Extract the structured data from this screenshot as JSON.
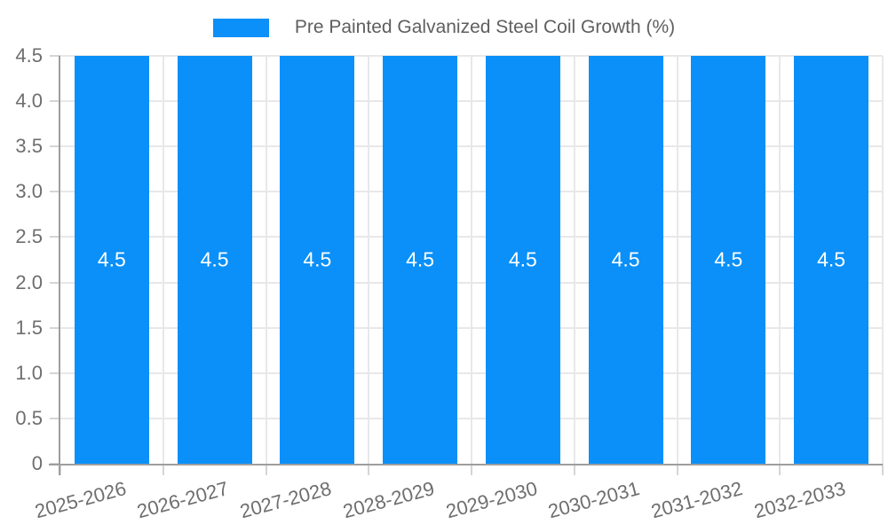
{
  "chart_data": {
    "type": "bar",
    "title": "",
    "legend": {
      "label": "Pre Painted Galvanized Steel Coil Growth (%)",
      "position": "top-center"
    },
    "categories": [
      "2025-2026",
      "2026-2027",
      "2027-2028",
      "2028-2029",
      "2029-2030",
      "2030-2031",
      "2031-2032",
      "2032-2033"
    ],
    "series": [
      {
        "name": "Pre Painted Galvanized Steel Coil Growth (%)",
        "values": [
          4.5,
          4.5,
          4.5,
          4.5,
          4.5,
          4.5,
          4.5,
          4.5
        ]
      }
    ],
    "data_labels": [
      "4.5",
      "4.5",
      "4.5",
      "4.5",
      "4.5",
      "4.5",
      "4.5",
      "4.5"
    ],
    "xlabel": "",
    "ylabel": "",
    "ylim": [
      0,
      4.5
    ],
    "y_ticks_top_to_bottom": [
      "4.5",
      "4.0",
      "3.5",
      "3.0",
      "2.5",
      "2.0",
      "1.5",
      "1.0",
      "0.5",
      "0"
    ],
    "grid": {
      "horizontal": true,
      "vertical_at_category_boundaries": true
    },
    "colors": {
      "bar": "#0a90f8",
      "grid": "#e8e8e8",
      "axis": "#9e9e9e",
      "tick": "#d5d5d5",
      "tick_label": "#6e6e6e",
      "legend_text": "#5f5f5f",
      "data_label": "#ffffff",
      "background": "#ffffff"
    }
  }
}
